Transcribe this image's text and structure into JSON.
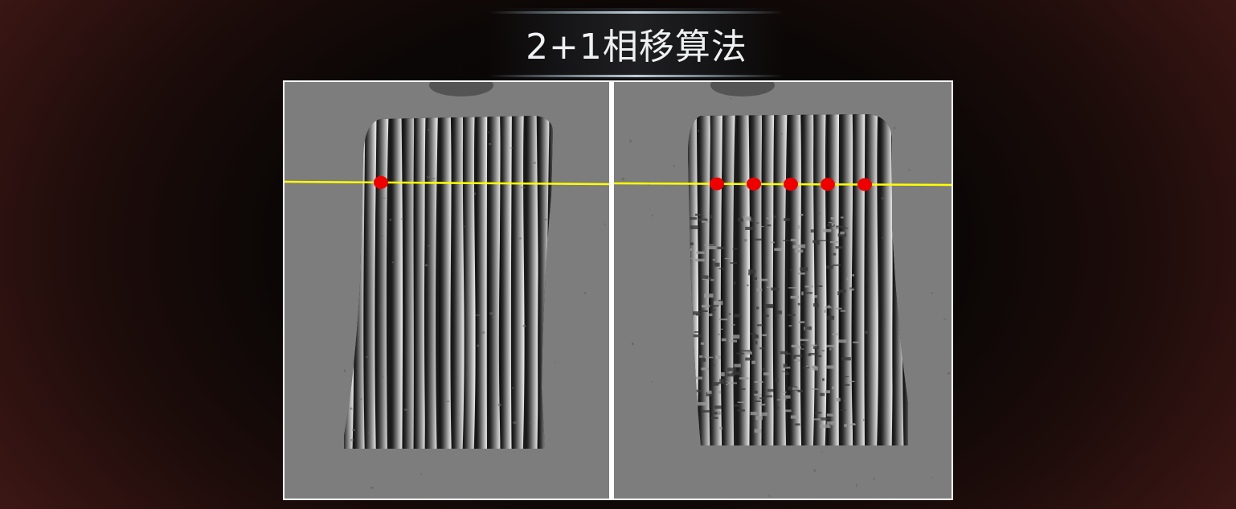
{
  "page": {
    "title": "2+1相移算法"
  },
  "colors": {
    "background_edge": "#3a1614",
    "background_center": "#050404",
    "panel_gray": "#7d7d7d",
    "scan_line": "#ffff00",
    "marker": "#ee0000",
    "divider": "#ffffff"
  },
  "panels": [
    {
      "id": "left",
      "stripe_count": 17,
      "marker_count": 1,
      "noise": "low"
    },
    {
      "id": "right",
      "stripe_count": 17,
      "marker_count": 5,
      "noise": "high"
    }
  ]
}
